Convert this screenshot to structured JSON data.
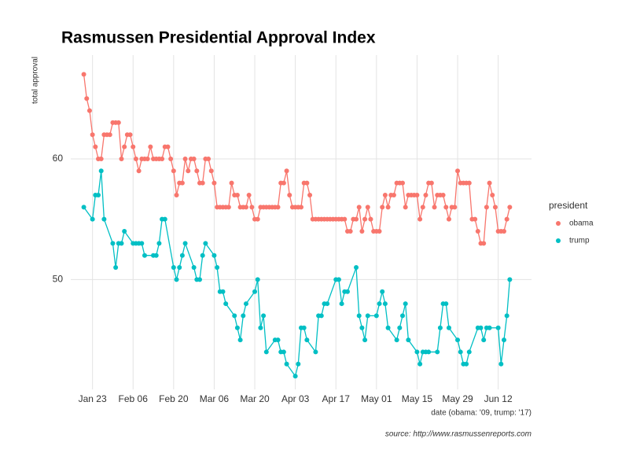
{
  "chart_data": {
    "type": "line",
    "title": "Rasmussen Presidential Approval Index",
    "ylabel": "total approval",
    "xlabel": "date (obama: '09, trump: '17)",
    "caption": "source: http://www.rasmussenreports.com",
    "legend_title": "president",
    "legend": "right",
    "grid": true,
    "xlim": [
      -4.5,
      154.5
    ],
    "xticks": [
      {
        "value": 3,
        "label": "Jan 23"
      },
      {
        "value": 17,
        "label": "Feb 06"
      },
      {
        "value": 31,
        "label": "Feb 20"
      },
      {
        "value": 45,
        "label": "Mar 06"
      },
      {
        "value": 59,
        "label": "Mar 20"
      },
      {
        "value": 73,
        "label": "Apr 03"
      },
      {
        "value": 87,
        "label": "Apr 17"
      },
      {
        "value": 101,
        "label": "May 01"
      },
      {
        "value": 115,
        "label": "May 15"
      },
      {
        "value": 129,
        "label": "May 29"
      },
      {
        "value": 143,
        "label": "Jun 12"
      }
    ],
    "ylim": [
      40.9,
      68.6
    ],
    "yticks": [
      50,
      60
    ],
    "series": [
      {
        "name": "obama",
        "color": "#F8766D",
        "x": [
          0,
          1,
          2,
          3,
          4,
          5,
          6,
          7,
          8,
          9,
          10,
          11,
          12,
          13,
          14,
          15,
          16,
          17,
          18,
          19,
          20,
          21,
          22,
          23,
          24,
          25,
          26,
          27,
          28,
          29,
          30,
          31,
          32,
          33,
          34,
          35,
          36,
          37,
          38,
          39,
          40,
          41,
          42,
          43,
          44,
          45,
          46,
          47,
          48,
          49,
          50,
          51,
          52,
          53,
          54,
          55,
          56,
          57,
          58,
          59,
          60,
          61,
          62,
          63,
          64,
          65,
          66,
          67,
          68,
          69,
          70,
          71,
          72,
          73,
          74,
          75,
          76,
          77,
          78,
          79,
          80,
          81,
          82,
          83,
          84,
          85,
          86,
          87,
          88,
          89,
          90,
          91,
          92,
          93,
          94,
          95,
          96,
          97,
          98,
          99,
          100,
          101,
          102,
          103,
          104,
          105,
          106,
          107,
          108,
          109,
          110,
          111,
          112,
          113,
          114,
          115,
          116,
          117,
          118,
          119,
          120,
          121,
          122,
          123,
          124,
          125,
          126,
          127,
          128,
          129,
          130,
          131,
          132,
          133,
          134,
          135,
          136,
          137,
          138,
          139,
          140,
          141,
          142,
          143,
          144,
          145,
          146,
          147
        ],
        "values": [
          67,
          65,
          64,
          62,
          61,
          60,
          60,
          62,
          62,
          62,
          63,
          63,
          63,
          60,
          61,
          62,
          62,
          61,
          60,
          59,
          60,
          60,
          60,
          61,
          60,
          60,
          60,
          60,
          61,
          61,
          60,
          59,
          57,
          58,
          58,
          60,
          59,
          60,
          60,
          59,
          58,
          58,
          60,
          60,
          59,
          58,
          56,
          56,
          56,
          56,
          56,
          58,
          57,
          57,
          56,
          56,
          56,
          57,
          56,
          55,
          55,
          56,
          56,
          56,
          56,
          56,
          56,
          56,
          58,
          58,
          59,
          57,
          56,
          56,
          56,
          56,
          58,
          58,
          57,
          55,
          55,
          55,
          55,
          55,
          55,
          55,
          55,
          55,
          55,
          55,
          55,
          54,
          54,
          55,
          55,
          56,
          54,
          55,
          56,
          55,
          54,
          54,
          54,
          56,
          57,
          56,
          57,
          57,
          58,
          58,
          58,
          56,
          57,
          57,
          57,
          57,
          55,
          56,
          57,
          58,
          58,
          56,
          57,
          57,
          57,
          56,
          55,
          56,
          56,
          59,
          58,
          58,
          58,
          58,
          55,
          55,
          54,
          53,
          53,
          56,
          58,
          57,
          56,
          54,
          54,
          54,
          55,
          56
        ]
      },
      {
        "name": "trump",
        "color": "#00BFC4",
        "x": [
          0,
          3,
          4,
          5,
          6,
          7,
          10,
          11,
          12,
          13,
          14,
          17,
          18,
          19,
          20,
          21,
          24,
          25,
          26,
          27,
          28,
          31,
          32,
          33,
          34,
          35,
          38,
          39,
          40,
          41,
          42,
          45,
          46,
          47,
          48,
          49,
          52,
          53,
          54,
          55,
          56,
          59,
          60,
          61,
          62,
          63,
          66,
          67,
          68,
          69,
          70,
          73,
          74,
          75,
          76,
          77,
          80,
          81,
          82,
          83,
          84,
          87,
          88,
          89,
          90,
          91,
          94,
          95,
          96,
          97,
          98,
          101,
          102,
          103,
          104,
          105,
          108,
          109,
          110,
          111,
          112,
          115,
          116,
          117,
          118,
          119,
          122,
          123,
          124,
          125,
          126,
          129,
          130,
          131,
          132,
          133,
          136,
          137,
          138,
          139,
          140,
          143,
          144,
          145,
          146,
          147
        ],
        "values": [
          56,
          55,
          57,
          57,
          59,
          55,
          53,
          51,
          53,
          53,
          54,
          53,
          53,
          53,
          53,
          52,
          52,
          52,
          53,
          55,
          55,
          51,
          50,
          51,
          52,
          53,
          51,
          50,
          50,
          52,
          53,
          52,
          51,
          49,
          49,
          48,
          47,
          46,
          45,
          47,
          48,
          49,
          50,
          46,
          47,
          44,
          45,
          45,
          44,
          44,
          43,
          42,
          43,
          46,
          46,
          45,
          44,
          47,
          47,
          48,
          48,
          50,
          50,
          48,
          49,
          49,
          51,
          47,
          46,
          45,
          47,
          47,
          48,
          49,
          48,
          46,
          45,
          46,
          47,
          48,
          45,
          44,
          43,
          44,
          44,
          44,
          44,
          46,
          48,
          48,
          46,
          45,
          44,
          43,
          43,
          44,
          46,
          46,
          45,
          46,
          46,
          46,
          43,
          45,
          47,
          50
        ]
      }
    ]
  }
}
